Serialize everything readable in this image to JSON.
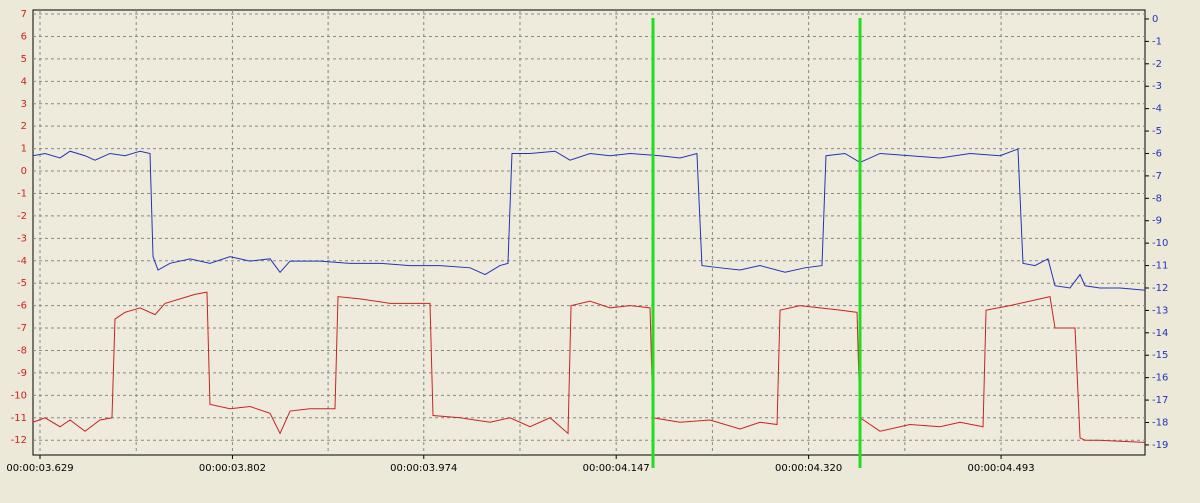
{
  "chart_data": {
    "type": "line",
    "xlim": [
      3.6227,
      4.6224
    ],
    "xticks": [
      {
        "value": 3.629,
        "label": "00:00:03.629"
      },
      {
        "value": 3.802,
        "label": "00:00:03.802"
      },
      {
        "value": 3.974,
        "label": "00:00:03.974"
      },
      {
        "value": 4.147,
        "label": "00:00:04.147"
      },
      {
        "value": 4.32,
        "label": "00:00:04.320"
      },
      {
        "value": 4.493,
        "label": "00:00:04.493"
      }
    ],
    "ylim": [
      -12.66,
      7.18
    ],
    "yticks": [
      -12,
      -11,
      -10,
      -9,
      -8,
      -7,
      -6,
      -5,
      -4,
      -3,
      -2,
      -1,
      0,
      1,
      2,
      3,
      4,
      5,
      6,
      7
    ],
    "y2lim": [
      -19.45,
      0.4
    ],
    "y2ticks": [
      -19,
      -18,
      -17,
      -16,
      -15,
      -14,
      -13,
      -12,
      -11,
      -10,
      -9,
      -8,
      -7,
      -6,
      -5,
      -4,
      -3,
      -2,
      -1,
      0
    ],
    "grid": true,
    "cursors": [
      4.1801,
      4.3662
    ],
    "cursor_color": "#22dd22",
    "series": [
      {
        "color": "#cc2222",
        "axis": "y",
        "x": [
          3.6227,
          3.6335,
          3.647,
          3.656,
          3.6695,
          3.6829,
          3.6937,
          3.6964,
          3.7054,
          3.7189,
          3.7324,
          3.7414,
          3.7549,
          3.7683,
          3.7791,
          3.7818,
          3.7998,
          3.8178,
          3.8358,
          3.8448,
          3.8538,
          3.8717,
          3.8942,
          3.8969,
          3.9167,
          3.9437,
          3.9796,
          3.9823,
          4.0066,
          4.0336,
          4.0515,
          4.0695,
          4.0875,
          4.1037,
          4.1064,
          4.1235,
          4.1414,
          4.1594,
          4.1774,
          4.1801,
          4.2044,
          4.2313,
          4.2583,
          4.2763,
          4.2916,
          4.2943,
          4.3122,
          4.3302,
          4.3482,
          4.3635,
          4.3662,
          4.3842,
          4.4111,
          4.4381,
          4.4561,
          4.4768,
          4.4795,
          4.501,
          4.519,
          4.537,
          4.5415,
          4.5595,
          4.564,
          4.5685,
          4.5809,
          4.6224
        ],
        "values": [
          -11.2,
          -11.0,
          -11.4,
          -11.1,
          -11.6,
          -11.1,
          -11.0,
          -6.6,
          -6.3,
          -6.1,
          -6.4,
          -5.9,
          -5.7,
          -5.5,
          -5.4,
          -10.4,
          -10.6,
          -10.5,
          -10.8,
          -11.7,
          -10.7,
          -10.6,
          -10.6,
          -5.6,
          -5.7,
          -5.9,
          -5.9,
          -10.9,
          -11.0,
          -11.2,
          -11.0,
          -11.4,
          -11.0,
          -11.7,
          -6.0,
          -5.8,
          -6.1,
          -6.0,
          -6.1,
          -11.0,
          -11.2,
          -11.1,
          -11.5,
          -11.2,
          -11.3,
          -6.2,
          -6.0,
          -6.1,
          -6.2,
          -6.3,
          -11.0,
          -11.6,
          -11.3,
          -11.4,
          -11.2,
          -11.4,
          -6.2,
          -6.0,
          -5.8,
          -5.6,
          -7.0,
          -7.0,
          -11.9,
          -12.0,
          -12.0,
          -12.1
        ]
      },
      {
        "color": "#2233bb",
        "axis": "y2",
        "x": [
          3.6227,
          3.6335,
          3.647,
          3.656,
          3.6695,
          3.6784,
          3.6919,
          3.7054,
          3.7189,
          3.7279,
          3.7306,
          3.7351,
          3.7459,
          3.7639,
          3.7818,
          3.7998,
          3.8178,
          3.8358,
          3.8448,
          3.8538,
          3.8807,
          3.9077,
          3.9347,
          3.9616,
          3.9886,
          4.0156,
          4.0291,
          4.0425,
          4.0497,
          4.0533,
          4.0695,
          4.092,
          4.1055,
          4.1235,
          4.1414,
          4.1594,
          4.1864,
          4.2044,
          4.2196,
          4.2241,
          4.2403,
          4.2583,
          4.2763,
          4.2988,
          4.3167,
          4.332,
          4.3356,
          4.3527,
          4.3662,
          4.3842,
          4.4111,
          4.4381,
          4.4651,
          4.492,
          4.5082,
          4.5127,
          4.5235,
          4.5352,
          4.5415,
          4.555,
          4.564,
          4.5685,
          4.5819,
          4.5999,
          4.6224
        ],
        "values": [
          -6.1,
          -6.0,
          -6.2,
          -5.9,
          -6.1,
          -6.3,
          -6.0,
          -6.1,
          -5.9,
          -6.0,
          -10.6,
          -11.2,
          -10.9,
          -10.7,
          -10.9,
          -10.6,
          -10.8,
          -10.7,
          -11.3,
          -10.8,
          -10.8,
          -10.9,
          -10.9,
          -11.0,
          -11.0,
          -11.1,
          -11.4,
          -11.0,
          -10.9,
          -6.0,
          -6.0,
          -5.9,
          -6.3,
          -6.0,
          -6.1,
          -6.0,
          -6.1,
          -6.2,
          -6.0,
          -11.0,
          -11.1,
          -11.2,
          -11.0,
          -11.3,
          -11.1,
          -11.0,
          -6.1,
          -6.0,
          -6.4,
          -6.0,
          -6.1,
          -6.2,
          -6.0,
          -6.1,
          -5.8,
          -10.9,
          -11.0,
          -10.7,
          -11.9,
          -12.0,
          -11.4,
          -11.9,
          -12.0,
          -12.0,
          -12.1
        ]
      }
    ]
  }
}
